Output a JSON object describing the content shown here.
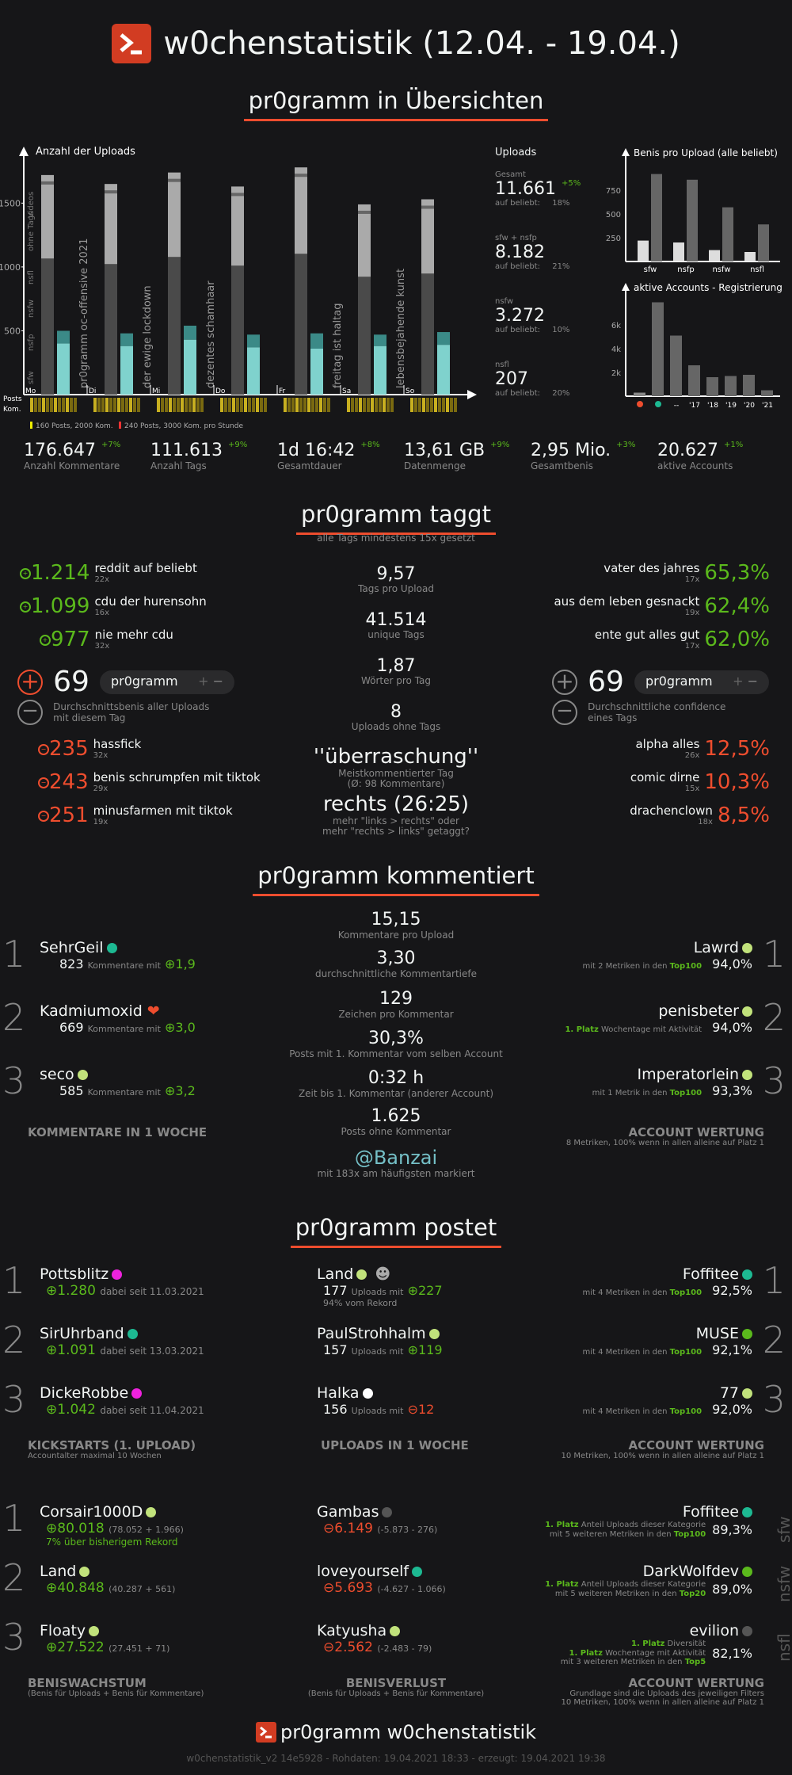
{
  "header": {
    "title": "w0chenstatistik (12.04. - 19.04.)"
  },
  "s1": {
    "title": "pr0gramm in Übersichten",
    "chart_data": [
      {
        "type": "bar",
        "title": "Anzahl der Uploads",
        "categories": [
          "Mo",
          "Di",
          "Mi",
          "Do",
          "Fr",
          "Sa",
          "So"
        ],
        "yticks": [
          "1500",
          "1000",
          "500"
        ],
        "ylim": [
          0,
          1800
        ],
        "series": [
          {
            "name": "sfw",
            "values": [
              400,
              380,
              430,
              370,
              360,
              380,
              390
            ]
          },
          {
            "name": "nsfp",
            "values": [
              100,
              100,
              110,
              100,
              120,
              90,
              100
            ]
          },
          {
            "name": "total",
            "values": [
              1720,
              1650,
              1740,
              1630,
              1780,
              1490,
              1530
            ]
          }
        ],
        "events": [
          "pr0gramm oc-offensive 2021",
          "der ewige lockdown",
          "dezentes schamhaar",
          "",
          "freitag ist haltag",
          "lebensbejahende kunst",
          ""
        ],
        "legend_side": [
          "Videos",
          "ohne Tags",
          "nsfl",
          "nsfw",
          "nsfp",
          "sfw"
        ],
        "rows": [
          "Posts",
          "Kom."
        ],
        "footnote1": "160 Posts, 2000 Kom.",
        "footnote2": "240 Posts, 3000 Kom. pro Stunde"
      },
      {
        "type": "bar",
        "title": "Benis pro Upload (alle beliebt)",
        "categories": [
          "sfw",
          "nsfp",
          "nsfw",
          "nsfl"
        ],
        "yticks": [
          "750",
          "500",
          "250"
        ],
        "ylim": [
          0,
          1000
        ],
        "series": [
          {
            "name": "alle",
            "values": [
              220,
              200,
              120,
              100
            ]
          },
          {
            "name": "beliebt",
            "values": [
              920,
              860,
              570,
              390
            ]
          }
        ]
      },
      {
        "type": "bar",
        "title": "aktive Accounts - Registrierung",
        "categories": [
          "",
          "",
          "--",
          "'17",
          "'18",
          "'19",
          "'20",
          "'21"
        ],
        "yticks": [
          "6k",
          "4k",
          "2k"
        ],
        "ylim": [
          0,
          8000
        ],
        "values": [
          300,
          7900,
          5100,
          2600,
          1600,
          1700,
          1800,
          500
        ]
      }
    ],
    "uploads": {
      "title": "Uploads",
      "items": [
        {
          "label": "Gesamt",
          "value": "11.661",
          "delta": "+5%",
          "sub": "auf beliebt:",
          "pct": "18%"
        },
        {
          "label": "sfw + nsfp",
          "value": "8.182",
          "sub": "auf beliebt:",
          "pct": "21%"
        },
        {
          "label": "nsfw",
          "value": "3.272",
          "sub": "auf beliebt:",
          "pct": "10%"
        },
        {
          "label": "nsfl",
          "value": "207",
          "sub": "auf beliebt:",
          "pct": "20%"
        }
      ]
    },
    "stats": [
      {
        "v": "176.647",
        "d": "+7%",
        "l": "Anzahl Kommentare"
      },
      {
        "v": "111.613",
        "d": "+9%",
        "l": "Anzahl Tags"
      },
      {
        "v": "1d 16:42",
        "d": "+8%",
        "l": "Gesamtdauer"
      },
      {
        "v": "13,61 GB",
        "d": "+9%",
        "l": "Datenmenge"
      },
      {
        "v": "2,95 Mio.",
        "d": "+3%",
        "l": "Gesamtbenis"
      },
      {
        "v": "20.627",
        "d": "+1%",
        "l": "aktive Accounts"
      }
    ]
  },
  "s2": {
    "title": "pr0gramm taggt",
    "subtitle": "alle Tags mindestens 15x gesetzt",
    "topleft": [
      {
        "v": "1.214",
        "t": "reddit auf beliebt",
        "c": "22x"
      },
      {
        "v": "1.099",
        "t": "cdu der hurensohn",
        "c": "16x"
      },
      {
        "v": "977",
        "t": "nie mehr cdu",
        "c": "32x"
      }
    ],
    "botleft": [
      {
        "v": "235",
        "t": "hassfick",
        "c": "32x"
      },
      {
        "v": "243",
        "t": "benis schrumpfen mit tiktok",
        "c": "29x"
      },
      {
        "v": "251",
        "t": "minusfarmen mit tiktok",
        "c": "19x"
      }
    ],
    "topright": [
      {
        "v": "65,3%",
        "t": "vater des jahres",
        "c": "17x"
      },
      {
        "v": "62,4%",
        "t": "aus dem leben gesnackt",
        "c": "19x"
      },
      {
        "v": "62,0%",
        "t": "ente gut alles gut",
        "c": "17x"
      }
    ],
    "botright": [
      {
        "v": "12,5%",
        "t": "alpha alles",
        "c": "26x"
      },
      {
        "v": "10,3%",
        "t": "comic dirne",
        "c": "15x"
      },
      {
        "v": "8,5%",
        "t": "drachenclown",
        "c": "18x"
      }
    ],
    "leftmid": {
      "v": "69",
      "pill": "pr0gramm",
      "desc1": "Durchschnittsbenis aller Uploads",
      "desc2": "mit diesem Tag"
    },
    "rightmid": {
      "v": "69",
      "pill": "pr0gramm",
      "desc1": "Durchschnittliche confidence",
      "desc2": "eines Tags"
    },
    "center": [
      {
        "v": "9,57",
        "l": "Tags pro Upload"
      },
      {
        "v": "41.514",
        "l": "unique Tags"
      },
      {
        "v": "1,87",
        "l": "Wörter pro Tag"
      },
      {
        "v": "8",
        "l": "Uploads ohne Tags"
      },
      {
        "v": "''überraschung''",
        "l": "Meistkommentierter Tag",
        "l2": "(Ø: 98 Kommentare)"
      },
      {
        "v": "rechts (26:25)",
        "l": "mehr \"links > rechts\" oder",
        "l2": "mehr \"rechts > links\" getaggt?"
      }
    ]
  },
  "s3": {
    "title": "pr0gramm kommentiert",
    "left": [
      {
        "n": "SehrGeil",
        "c": "823",
        "x": "Kommentare mit",
        "v": "1,9"
      },
      {
        "n": "Kadmiumoxid",
        "c": "669",
        "x": "Kommentare mit",
        "v": "3,0"
      },
      {
        "n": "seco",
        "c": "585",
        "x": "Kommentare mit",
        "v": "3,2"
      }
    ],
    "right": [
      {
        "n": "Lawrd",
        "s": "mit 2 Metriken in den",
        "h": "Top100",
        "p": "94,0%"
      },
      {
        "n": "penisbeter",
        "pre": "1. Platz",
        "s": "Wochentage mit Aktivität",
        "p": "94,0%"
      },
      {
        "n": "Imperatorlein",
        "s": "mit 1 Metrik in den",
        "h": "Top100",
        "p": "93,3%"
      }
    ],
    "center": [
      {
        "v": "15,15",
        "l": "Kommentare pro Upload"
      },
      {
        "v": "3,30",
        "l": "durchschnittliche Kommentartiefe"
      },
      {
        "v": "129",
        "l": "Zeichen pro Kommentar"
      },
      {
        "v": "30,3%",
        "l": "Posts mit 1. Kommentar vom selben Account"
      },
      {
        "v": "0:32 h",
        "l": "Zeit bis 1. Kommentar (anderer Account)"
      },
      {
        "v": "1.625",
        "l": "Posts ohne Kommentar"
      }
    ],
    "banzai": "@Banzai",
    "banzai_sub": "mit 183x am häufigsten markiert",
    "left_label": "KOMMENTARE IN 1 WOCHE",
    "right_label": "ACCOUNT WERTUNG",
    "right_sub": "8 Metriken, 100% wenn in allen alleine auf Platz 1"
  },
  "s4": {
    "title": "pr0gramm postet",
    "kick": [
      {
        "n": "Pottsblitz",
        "v": "1.280",
        "s": "dabei seit 11.03.2021"
      },
      {
        "n": "SirUhrband",
        "v": "1.091",
        "s": "dabei seit 13.03.2021"
      },
      {
        "n": "DickeRobbe",
        "v": "1.042",
        "s": "dabei seit 11.04.2021"
      }
    ],
    "up": [
      {
        "n": "Land",
        "c": "177",
        "x": "Uploads mit",
        "v": "227",
        "pos": true,
        "s2": "94% vom Rekord"
      },
      {
        "n": "PaulStrohhalm",
        "c": "157",
        "x": "Uploads mit",
        "v": "119",
        "pos": true
      },
      {
        "n": "Halka",
        "c": "156",
        "x": "Uploads mit",
        "v": "12",
        "pos": false
      }
    ],
    "acc": [
      {
        "n": "Foffitee",
        "s": "mit 4 Metriken in den",
        "h": "Top100",
        "p": "92,5%"
      },
      {
        "n": "MUSE",
        "s": "mit 4 Metriken in den",
        "h": "Top100",
        "p": "92,1%"
      },
      {
        "n": "77",
        "s": "mit 4 Metriken in den",
        "h": "Top100",
        "p": "92,0%"
      }
    ],
    "l1": "KICKSTARTS (1. UPLOAD)",
    "l1s": "Accountalter maximal 10 Wochen",
    "l2": "UPLOADS IN 1 WOCHE",
    "l3": "ACCOUNT WERTUNG",
    "l3s": "10 Metriken, 100% wenn in allen alleine auf Platz 1",
    "grow": [
      {
        "n": "Corsair1000D",
        "v": "80.018",
        "s": "(78.052 + 1.966)",
        "s2": "7% über bisherigem Rekord"
      },
      {
        "n": "Land",
        "v": "40.848",
        "s": "(40.287 + 561)"
      },
      {
        "n": "Floaty",
        "v": "27.522",
        "s": "(27.451 + 71)"
      }
    ],
    "loss": [
      {
        "n": "Gambas",
        "v": "6.149",
        "s": "(-5.873 - 276)"
      },
      {
        "n": "loveyourself",
        "v": "5.693",
        "s": "(-4.627 - 1.066)"
      },
      {
        "n": "Katyusha",
        "v": "2.562",
        "s": "(-2.483 - 79)"
      }
    ],
    "cat": [
      {
        "n": "Foffitee",
        "a": "1. Platz",
        "b": "Anteil Uploads dieser Kategorie",
        "c": "mit 5 weiteren Metriken in den",
        "h": "Top100",
        "p": "89,3%",
        "side": "sfw"
      },
      {
        "n": "DarkWolfdev",
        "a": "1. Platz",
        "b": "Anteil Uploads dieser Kategorie",
        "c": "mit 5 weiteren Metriken in den",
        "h": "Top20",
        "p": "89,0%",
        "side": "nsfw"
      },
      {
        "n": "evilion",
        "a": "1. Platz",
        "b": "Diversität",
        "a2": "1. Platz",
        "b2": "Wochentage mit Aktivität",
        "c": "mit 3 weiteren Metriken in den",
        "h": "Top5",
        "p": "82,1%",
        "side": "nsfl"
      }
    ],
    "l4": "BENISWACHSTUM",
    "l4s": "(Benis für Uploads + Benis für Kommentare)",
    "l5": "BENISVERLUST",
    "l5s": "(Benis für Uploads + Benis für Kommentare)",
    "l6": "ACCOUNT WERTUNG",
    "l6s1": "Grundlage sind die Uploads des jeweiligen Filters",
    "l6s2": "10 Metriken, 100% wenn in allen alleine auf Platz 1"
  },
  "footer": {
    "title": "pr0gramm w0chenstatistik",
    "sub": "w0chenstatistik_v2 14e5928 - Rohdaten: 19.04.2021 18:33 - erzeugt: 19.04.2021 19:38"
  },
  "colors": {
    "accent": "#ee4d2e",
    "green": "#5bb91c",
    "teal": "#1db992"
  }
}
